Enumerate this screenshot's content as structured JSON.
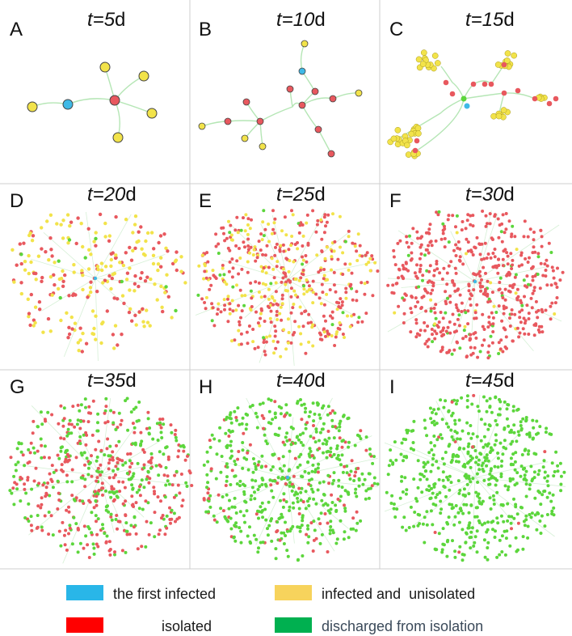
{
  "panels": [
    {
      "letter": "A",
      "time_prefix": "t=",
      "time_value": "5",
      "time_unit": "d"
    },
    {
      "letter": "B",
      "time_prefix": "t=",
      "time_value": "10",
      "time_unit": "d"
    },
    {
      "letter": "C",
      "time_prefix": "t=",
      "time_value": "15",
      "time_unit": "d"
    },
    {
      "letter": "D",
      "time_prefix": "t=",
      "time_value": "20",
      "time_unit": "d"
    },
    {
      "letter": "E",
      "time_prefix": "t=",
      "time_value": "25",
      "time_unit": "d"
    },
    {
      "letter": "F",
      "time_prefix": "t=",
      "time_value": "30",
      "time_unit": "d"
    },
    {
      "letter": "G",
      "time_prefix": "t=",
      "time_value": "35",
      "time_unit": "d"
    },
    {
      "letter": "H",
      "time_prefix": "t=",
      "time_value": "40",
      "time_unit": "d"
    },
    {
      "letter": "I",
      "time_prefix": "t=",
      "time_value": "45",
      "time_unit": "d"
    }
  ],
  "legend": {
    "first_infected": "the first infected",
    "infected_unisolated": "infected and  unisolated",
    "isolated": "isolated",
    "discharged": "discharged from isolation"
  },
  "colors": {
    "first_infected": "#29b6e8",
    "infected_unisolated": "#f7d35c",
    "isolated": "#ff0000",
    "discharged": "#00b050",
    "node_first": "#3fb9e6",
    "node_yellow": "#f2e34a",
    "node_red": "#e8585e",
    "node_green": "#5cd63c",
    "edge": "#b5e6b5"
  }
}
